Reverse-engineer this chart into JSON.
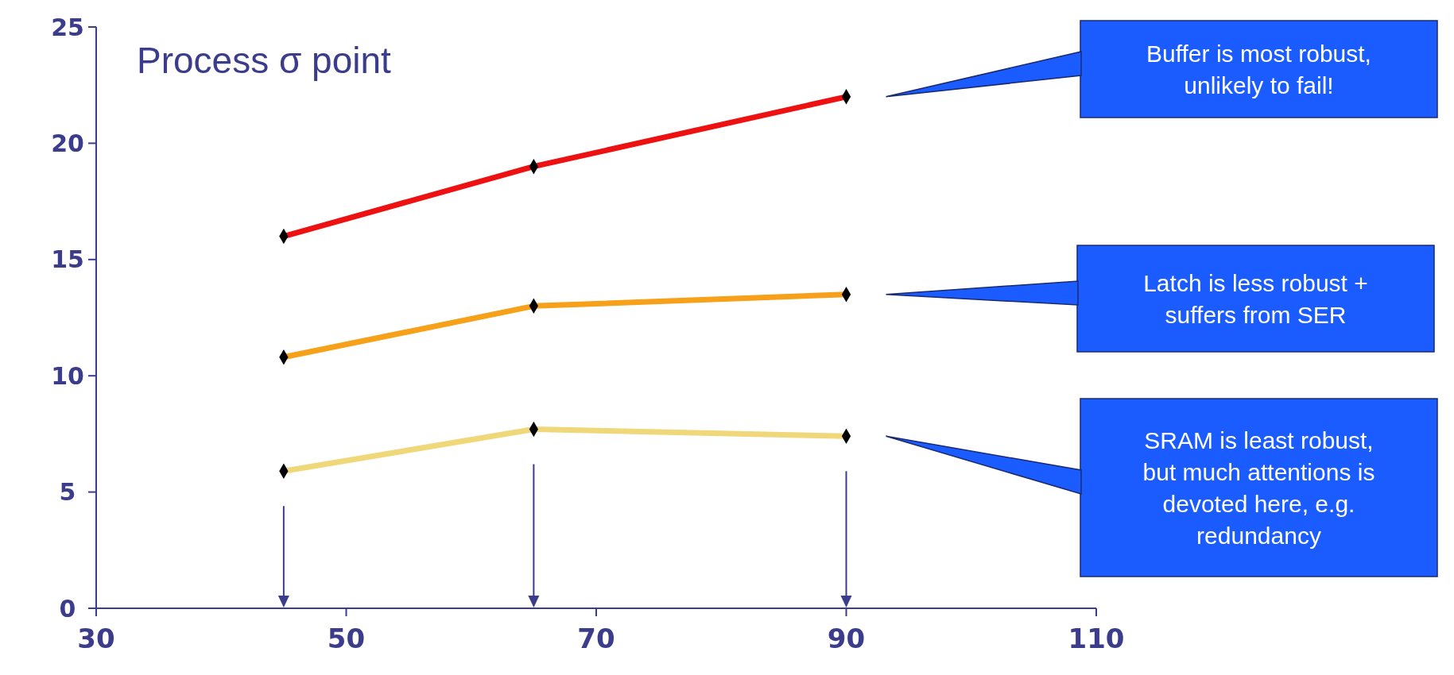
{
  "chart_data": {
    "type": "line",
    "title": "Process σ point",
    "x": [
      45,
      65,
      90
    ],
    "series": [
      {
        "color": "#ee1111",
        "values": [
          16,
          19,
          22
        ]
      },
      {
        "color": "#f7a01a",
        "values": [
          10.8,
          13,
          13.5
        ]
      },
      {
        "color": "#f0d87a",
        "values": [
          5.9,
          7.7,
          7.4
        ]
      }
    ],
    "xlim": [
      30,
      110
    ],
    "xticks": [
      30,
      50,
      70,
      90,
      110
    ],
    "ylim": [
      0,
      25
    ],
    "yticks": [
      0,
      5,
      10,
      15,
      20,
      25
    ],
    "marker": "diamond",
    "line_style": "solid",
    "grid": false,
    "annotations": [
      "Buffer is most robust, unlikely to fail!",
      "Latch is less robust + suffers from SER",
      "SRAM is least robust, but much attentions is devoted here, e.g. redundancy"
    ]
  }
}
